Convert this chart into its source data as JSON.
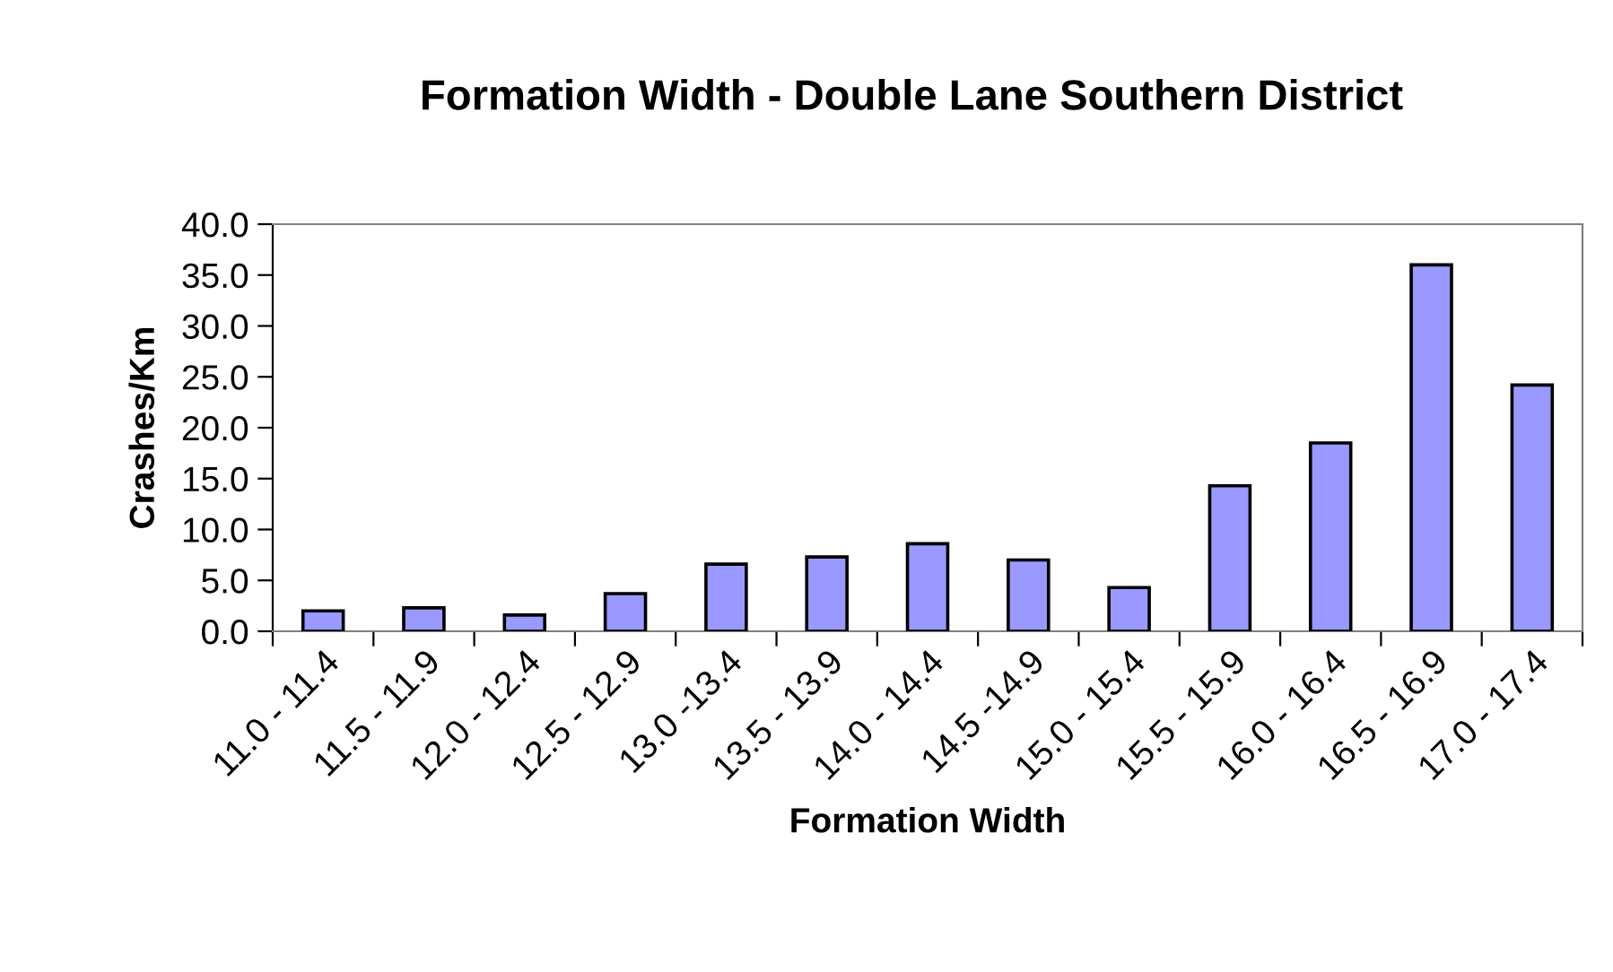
{
  "chart_data": {
    "type": "bar",
    "title": "Formation Width - Double Lane Southern District",
    "xlabel": "Formation Width",
    "ylabel": "Crashes/Km",
    "categories": [
      "11.0 - 11.4",
      "11.5 - 11.9",
      "12.0 - 12.4",
      "12.5 - 12.9",
      "13.0 -13.4",
      "13.5 - 13.9",
      "14.0 - 14.4",
      "14.5 -14.9",
      "15.0 - 15.4",
      "15.5 - 15.9",
      "16.0 - 16.4",
      "16.5 - 16.9",
      "17.0 - 17.4"
    ],
    "values": [
      2.0,
      2.3,
      1.6,
      3.7,
      6.6,
      7.3,
      8.6,
      7.0,
      4.3,
      14.3,
      18.5,
      36.0,
      24.2
    ],
    "color": "#9999ff",
    "ylim": [
      0,
      40
    ],
    "yticks": [
      {
        "value": 0,
        "label": "0.0"
      },
      {
        "value": 5,
        "label": "5.0"
      },
      {
        "value": 10,
        "label": "10.0"
      },
      {
        "value": 15,
        "label": "15.0"
      },
      {
        "value": 20,
        "label": "20.0"
      },
      {
        "value": 25,
        "label": "25.0"
      },
      {
        "value": 30,
        "label": "30.0"
      },
      {
        "value": 35,
        "label": "35.0"
      },
      {
        "value": 40,
        "label": "40.0"
      }
    ],
    "grid": false
  }
}
